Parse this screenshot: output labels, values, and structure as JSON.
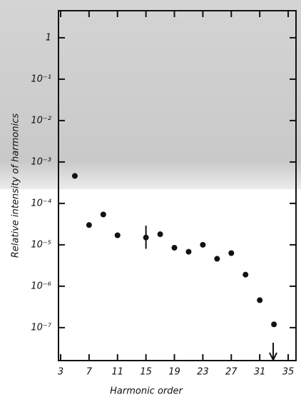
{
  "chart_data": {
    "type": "scatter",
    "x_label": "Harmonic order",
    "y_label": "Relative intensity of harmonics",
    "log_y": true,
    "xlim": [
      2.7,
      36.1
    ],
    "ylim": [
      1.6e-08,
      4.5
    ],
    "xticks": [
      3,
      7,
      11,
      15,
      19,
      23,
      27,
      31,
      35
    ],
    "yticks": [
      1,
      {
        "value": 0.1,
        "label": "10⁻¹"
      },
      {
        "value": 0.01,
        "label": "10⁻²"
      },
      {
        "value": 0.001,
        "label": "10⁻³"
      },
      {
        "value": 0.0001,
        "label": "10⁻⁴"
      },
      {
        "value": 1e-05,
        "label": "10⁻⁵"
      },
      {
        "value": 1e-06,
        "label": "10⁻⁶"
      },
      {
        "value": 1e-07,
        "label": "10⁻⁷"
      }
    ],
    "color": "#111111",
    "x": [
      5,
      7,
      9,
      11,
      15,
      17,
      19,
      21,
      23,
      25,
      27,
      29,
      31,
      33
    ],
    "values": [
      0.00046,
      3e-05,
      5.4e-05,
      1.7e-05,
      1.5e-05,
      1.8e-05,
      8.5e-06,
      6.8e-06,
      1e-05,
      4.6e-06,
      6.3e-06,
      1.9e-06,
      4.6e-07,
      1.2e-07
    ],
    "error_low": [
      null,
      null,
      null,
      null,
      8e-06,
      null,
      null,
      null,
      null,
      null,
      null,
      null,
      null,
      null
    ],
    "error_high": [
      null,
      null,
      null,
      null,
      2.9e-05,
      null,
      null,
      null,
      null,
      null,
      null,
      null,
      null,
      null
    ]
  }
}
